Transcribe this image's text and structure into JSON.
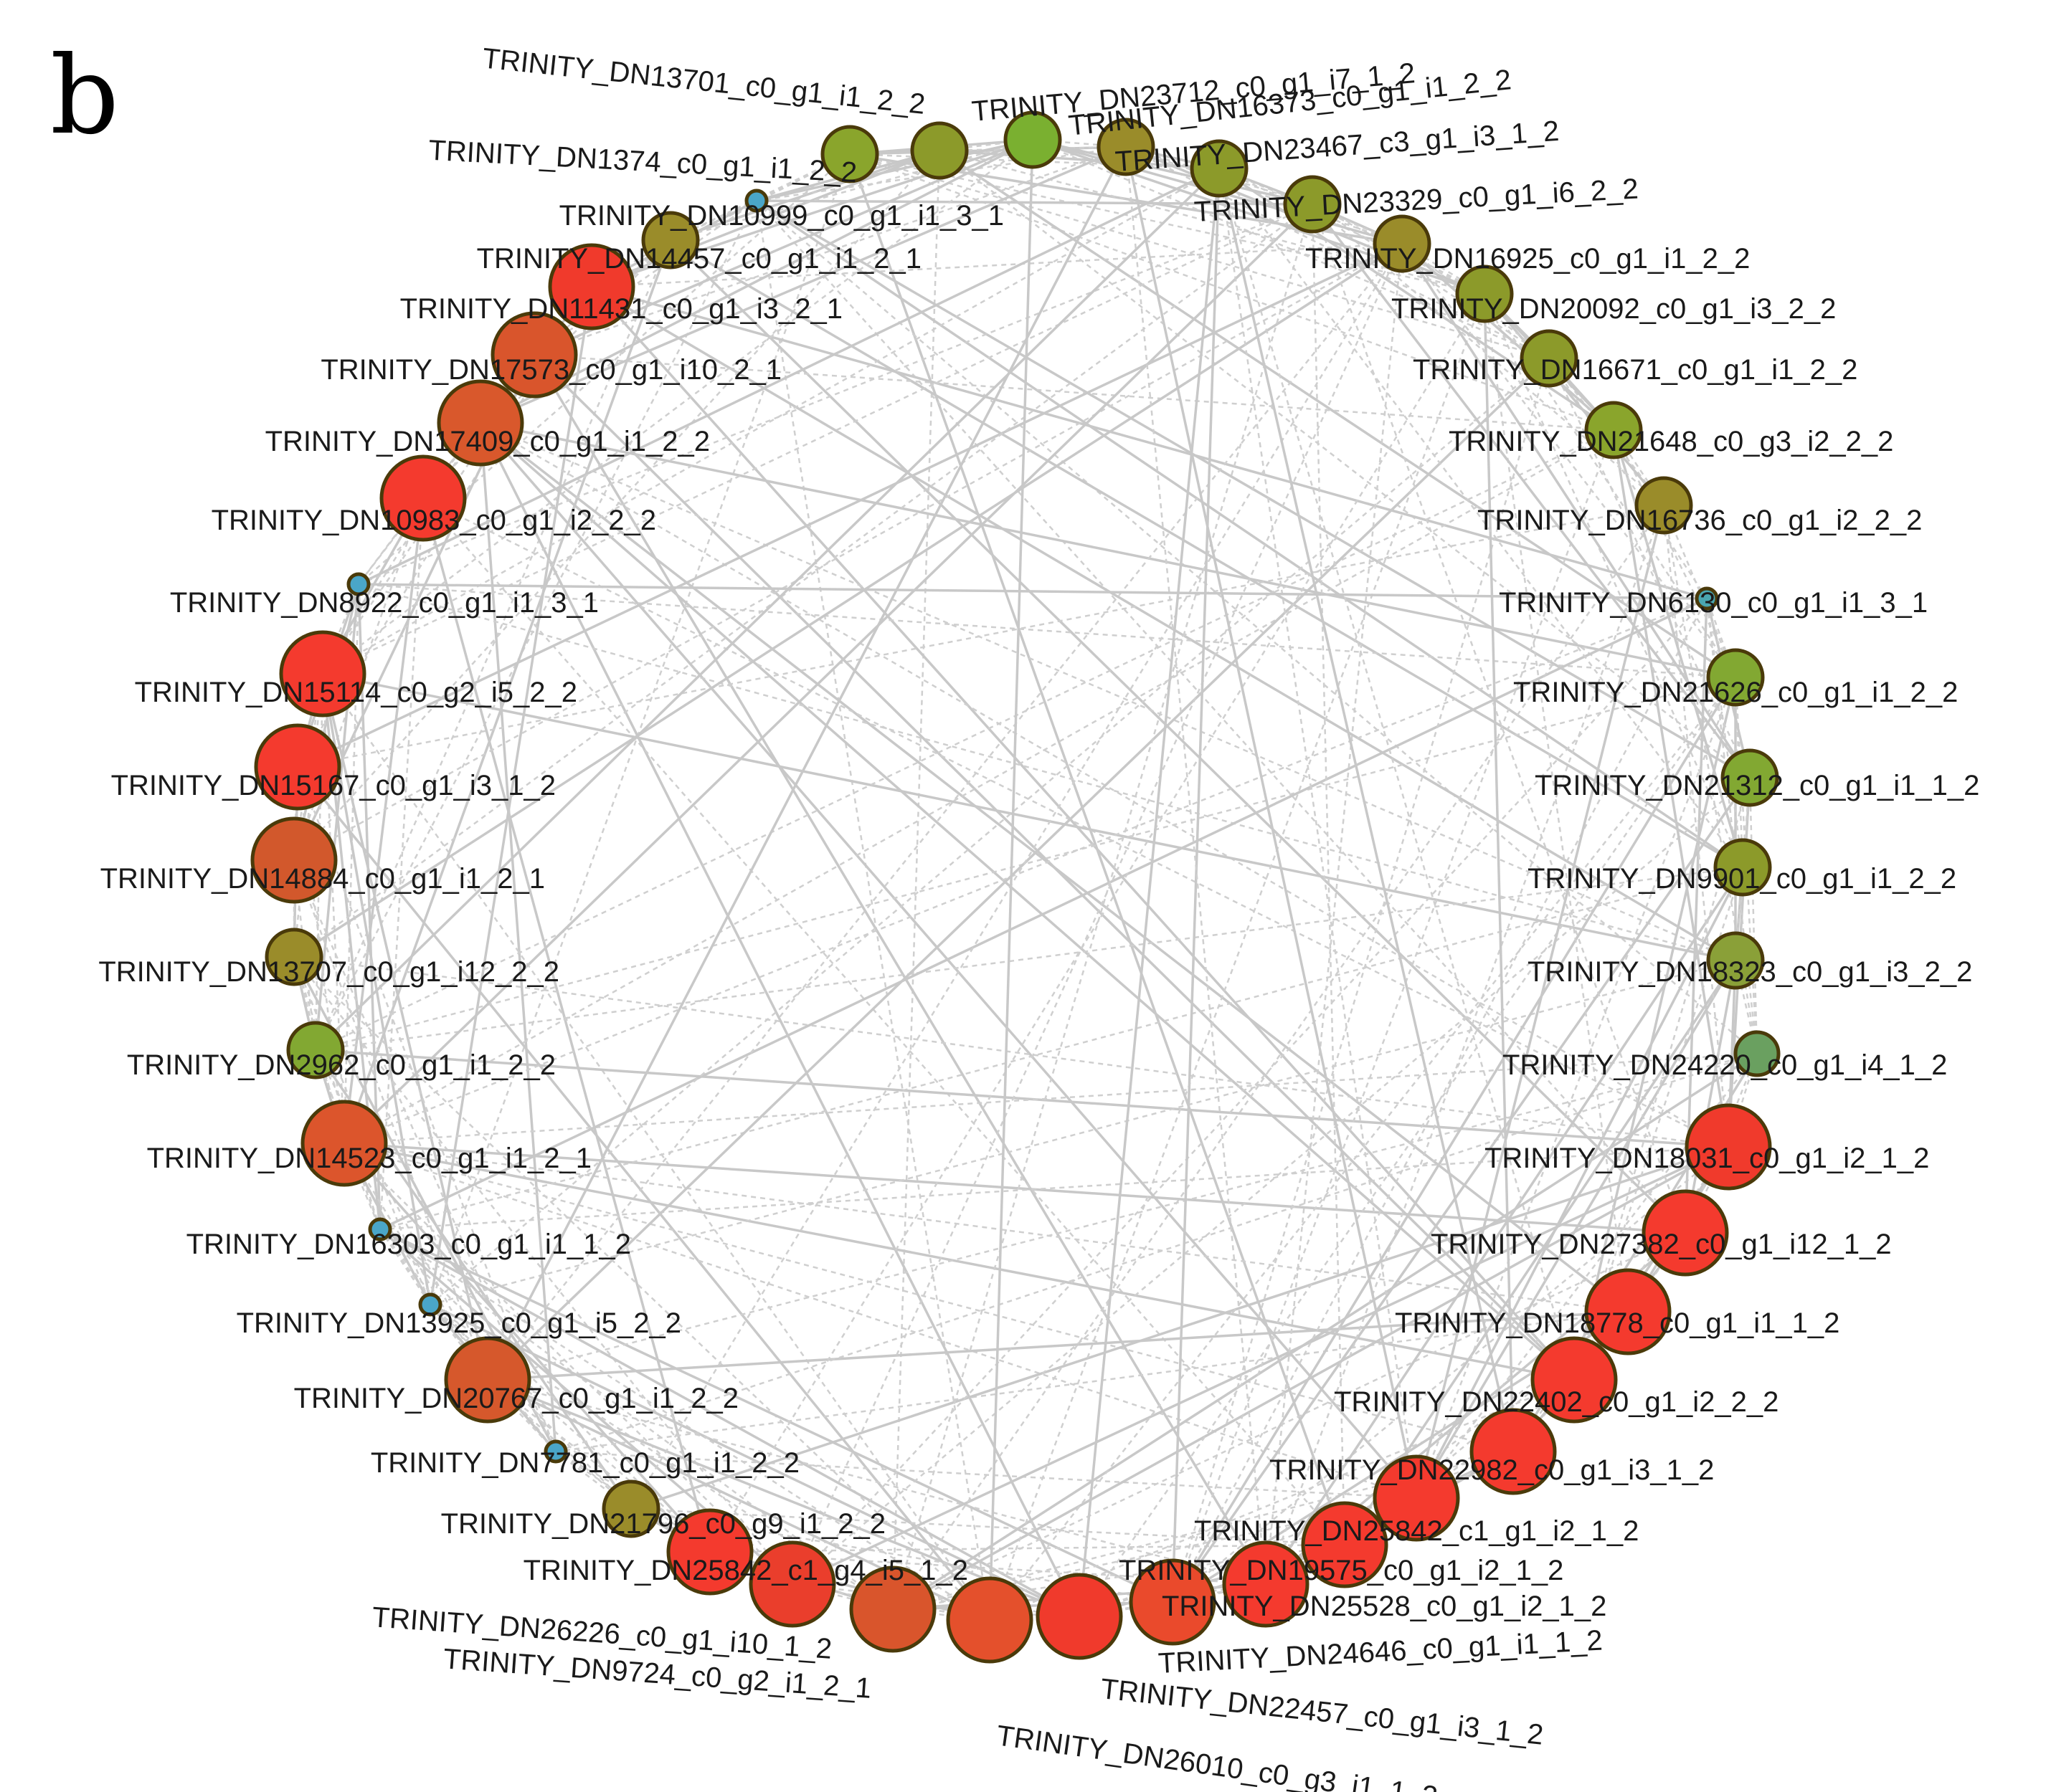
{
  "panel_label": "b",
  "network": {
    "nodes": [
      {
        "id": "TRINITY_DN13701_c0_g1_i1_2_2",
        "color": "#8aa52c",
        "size": "medium"
      },
      {
        "id": "TRINITY_DN1374_c0_g1_i1_2_2",
        "color": "#8c9a2a",
        "size": "medium"
      },
      {
        "id": "TRINITY_DN10999_c0_g1_i1_3_1",
        "color": "#4aa6c8",
        "size": "tiny"
      },
      {
        "id": "TRINITY_DN14457_c0_g1_i1_2_1",
        "color": "#9a8c2a",
        "size": "medium"
      },
      {
        "id": "TRINITY_DN11431_c0_g1_i3_2_1",
        "color": "#f03a2c",
        "size": "large"
      },
      {
        "id": "TRINITY_DN17573_c0_g1_i10_2_1",
        "color": "#d9552c",
        "size": "large"
      },
      {
        "id": "TRINITY_DN17409_c0_g1_i1_2_2",
        "color": "#d9582c",
        "size": "large"
      },
      {
        "id": "TRINITY_DN10983_c0_g1_i2_2_2",
        "color": "#f43a2e",
        "size": "large"
      },
      {
        "id": "TRINITY_DN8922_c0_g1_i1_3_1",
        "color": "#4aa6c8",
        "size": "tiny"
      },
      {
        "id": "TRINITY_DN15114_c0_g2_i5_2_2",
        "color": "#f43a2e",
        "size": "large"
      },
      {
        "id": "TRINITY_DN15167_c0_g1_i3_1_2",
        "color": "#f43a2e",
        "size": "large"
      },
      {
        "id": "TRINITY_DN14884_c0_g1_i1_2_1",
        "color": "#d2582c",
        "size": "large"
      },
      {
        "id": "TRINITY_DN13707_c0_g1_i12_2_2",
        "color": "#9a8c2a",
        "size": "medium"
      },
      {
        "id": "TRINITY_DN2962_c0_g1_i1_2_2",
        "color": "#82a832",
        "size": "medium"
      },
      {
        "id": "TRINITY_DN14523_c0_g1_i1_2_1",
        "color": "#dc552c",
        "size": "large"
      },
      {
        "id": "TRINITY_DN16303_c0_g1_i1_1_2",
        "color": "#4aa6c8",
        "size": "tiny"
      },
      {
        "id": "TRINITY_DN13925_c0_g1_i5_2_2",
        "color": "#4aa6c8",
        "size": "tiny"
      },
      {
        "id": "TRINITY_DN20767_c0_g1_i1_2_2",
        "color": "#d6582c",
        "size": "large"
      },
      {
        "id": "TRINITY_DN7781_c0_g1_i1_2_2",
        "color": "#4aa6c8",
        "size": "tiny"
      },
      {
        "id": "TRINITY_DN21796_c0_g9_i1_2_2",
        "color": "#9a8c2a",
        "size": "medium"
      },
      {
        "id": "TRINITY_DN25842_c1_g4_i5_1_2",
        "color": "#f43a2e",
        "size": "large"
      },
      {
        "id": "TRINITY_DN26226_c0_g1_i10_1_2",
        "color": "#ea3e2c",
        "size": "large"
      },
      {
        "id": "TRINITY_DN9724_c0_g2_i1_2_1",
        "color": "#d9552c",
        "size": "large"
      },
      {
        "id": "TRINITY_DN26010_c0_g3_i1_1_2",
        "color": "#e4502c",
        "size": "large"
      },
      {
        "id": "TRINITY_DN22457_c0_g1_i3_1_2",
        "color": "#f03a2c",
        "size": "large"
      },
      {
        "id": "TRINITY_DN24646_c0_g1_i1_1_2",
        "color": "#ea4a2c",
        "size": "large"
      },
      {
        "id": "TRINITY_DN25528_c0_g1_i2_1_2",
        "color": "#f43a2e",
        "size": "large"
      },
      {
        "id": "TRINITY_DN19575_c0_g1_i2_1_2",
        "color": "#f43a2e",
        "size": "large"
      },
      {
        "id": "TRINITY_DN25842_c1_g1_i2_1_2",
        "color": "#f43a2e",
        "size": "large"
      },
      {
        "id": "TRINITY_DN22982_c0_g1_i3_1_2",
        "color": "#f43a2e",
        "size": "large"
      },
      {
        "id": "TRINITY_DN22402_c0_g1_i2_2_2",
        "color": "#f43a2e",
        "size": "large"
      },
      {
        "id": "TRINITY_DN18778_c0_g1_i1_1_2",
        "color": "#f43a2e",
        "size": "large"
      },
      {
        "id": "TRINITY_DN27382_c0_g1_i12_1_2",
        "color": "#f43a2e",
        "size": "large"
      },
      {
        "id": "TRINITY_DN18031_c0_g1_i2_1_2",
        "color": "#f03a2c",
        "size": "large"
      },
      {
        "id": "TRINITY_DN24220_c0_g1_i4_1_2",
        "color": "#6aa060",
        "size": "small"
      },
      {
        "id": "TRINITY_DN18323_c0_g1_i3_2_2",
        "color": "#8aa038",
        "size": "medium"
      },
      {
        "id": "TRINITY_DN9901_c0_g1_i1_2_2",
        "color": "#8c9a2a",
        "size": "medium"
      },
      {
        "id": "TRINITY_DN21312_c0_g1_i1_1_2",
        "color": "#82a832",
        "size": "medium"
      },
      {
        "id": "TRINITY_DN21626_c0_g1_i1_2_2",
        "color": "#82a832",
        "size": "medium"
      },
      {
        "id": "TRINITY_DN6130_c0_g1_i1_3_1",
        "color": "#4aa6b0",
        "size": "tiny"
      },
      {
        "id": "TRINITY_DN16736_c0_g1_i2_2_2",
        "color": "#9a8c2a",
        "size": "medium"
      },
      {
        "id": "TRINITY_DN21648_c0_g3_i2_2_2",
        "color": "#8aa52c",
        "size": "medium"
      },
      {
        "id": "TRINITY_DN16671_c0_g1_i1_2_2",
        "color": "#8c9a2a",
        "size": "medium"
      },
      {
        "id": "TRINITY_DN20092_c0_g1_i3_2_2",
        "color": "#8c9a2a",
        "size": "medium"
      },
      {
        "id": "TRINITY_DN16925_c0_g1_i1_2_2",
        "color": "#9a8c2a",
        "size": "medium"
      },
      {
        "id": "TRINITY_DN23329_c0_g1_i6_2_2",
        "color": "#8c9a2a",
        "size": "medium"
      },
      {
        "id": "TRINITY_DN23467_c3_g1_i3_1_2",
        "color": "#8c9a2a",
        "size": "medium"
      },
      {
        "id": "TRINITY_DN16373_c0_g1_i1_2_2",
        "color": "#9a8c2a",
        "size": "medium"
      },
      {
        "id": "TRINITY_DN23712_c0_g1_i7_1_2",
        "color": "#7ab030",
        "size": "medium"
      }
    ]
  }
}
